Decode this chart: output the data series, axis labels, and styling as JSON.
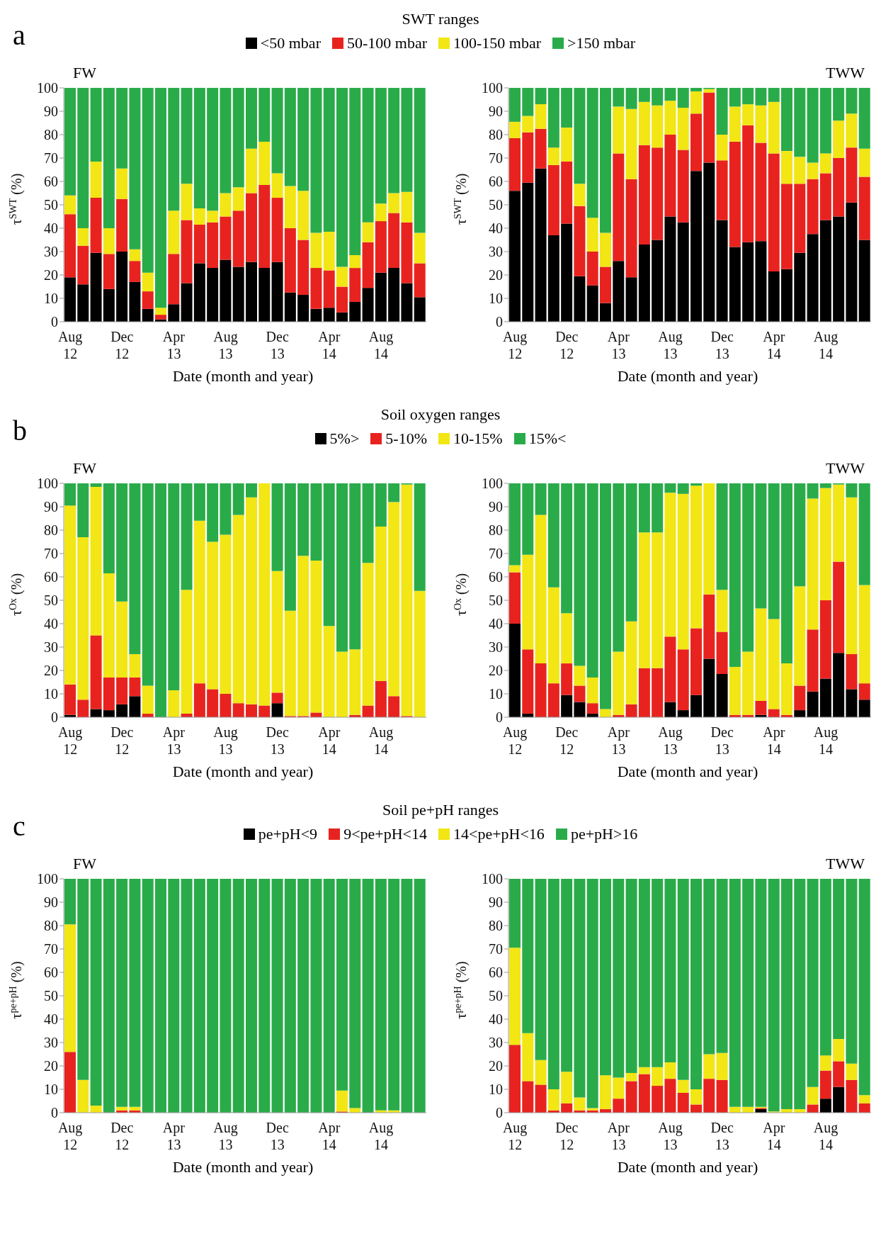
{
  "chart_data": [
    {
      "type": "bar",
      "stacked": true,
      "title": "SWT ranges",
      "annotations": [
        "a"
      ],
      "subtitle": "FW",
      "xlabel": "Date (month and year)",
      "ylabel": "τ$^{SWT}$ (%)",
      "legend": "top",
      "categories": [
        "Aug 12",
        null,
        null,
        null,
        "Dec 12",
        null,
        null,
        null,
        "Apr 13",
        null,
        null,
        null,
        "Aug 13",
        null,
        null,
        null,
        "Dec 13",
        null,
        null,
        null,
        "Apr 14",
        null,
        null,
        null,
        "Aug 14",
        null,
        null,
        null
      ],
      "ylim": [
        0,
        100
      ],
      "yticks": [
        0,
        10,
        20,
        30,
        40,
        50,
        60,
        70,
        80,
        90,
        100
      ],
      "series": [
        {
          "name": "<50 mbar",
          "color": "#000000",
          "values": [
            19,
            16,
            29.5,
            14,
            30,
            17,
            5.5,
            1,
            7.5,
            16.5,
            25,
            23,
            26.5,
            23.5,
            25.5,
            23,
            25.5,
            12.5,
            11.5,
            5.5,
            6,
            4,
            8.5,
            14.5,
            21,
            23,
            16.5,
            10.5
          ]
        },
        {
          "name": "50-100 mbar",
          "color": "#e8231f",
          "values": [
            27,
            16.5,
            23.5,
            15,
            22.5,
            9,
            7.5,
            2,
            21.5,
            27,
            16.5,
            19.5,
            18.5,
            24,
            29.5,
            35.5,
            27.5,
            27.5,
            23.5,
            17.5,
            16,
            11,
            14.5,
            19.5,
            22,
            23.5,
            26,
            14.5
          ]
        },
        {
          "name": "100-150 mbar",
          "color": "#f2e614",
          "values": [
            8,
            7.5,
            15.5,
            11,
            13,
            5,
            8,
            3,
            18.5,
            15.5,
            7,
            5,
            10,
            10,
            19,
            18.5,
            10.5,
            18,
            21,
            15,
            16.5,
            8.5,
            5.5,
            8.5,
            7.5,
            8.5,
            13,
            13
          ]
        },
        {
          "name": ">150 mbar",
          "color": "#2aab4a",
          "values": [
            46,
            60,
            31.5,
            60,
            34.5,
            69,
            79,
            94,
            52.5,
            41,
            51.5,
            52.5,
            45,
            42.5,
            26,
            23,
            36.5,
            42,
            44,
            62,
            61.5,
            76.5,
            71.5,
            57.5,
            49.5,
            45,
            44.5,
            62
          ]
        }
      ]
    },
    {
      "type": "bar",
      "stacked": true,
      "subtitle": "TWW",
      "xlabel": "Date (month and year)",
      "ylabel": "τ$^{SWT}$ (%)",
      "categories": [
        "Aug 12",
        null,
        null,
        null,
        "Dec 12",
        null,
        null,
        null,
        "Apr 13",
        null,
        null,
        null,
        "Aug 13",
        null,
        null,
        null,
        "Dec 13",
        null,
        null,
        null,
        "Apr 14",
        null,
        null,
        null,
        "Aug 14",
        null,
        null,
        null
      ],
      "ylim": [
        0,
        100
      ],
      "yticks": [
        0,
        10,
        20,
        30,
        40,
        50,
        60,
        70,
        80,
        90,
        100
      ],
      "series": [
        {
          "color": "#000000",
          "values": [
            56,
            59.5,
            65.5,
            37,
            42,
            19.5,
            15.5,
            8,
            26,
            19,
            33,
            35,
            45,
            42.5,
            64.5,
            68,
            43.5,
            32,
            34,
            34.5,
            21.5,
            22.5,
            29.5,
            37.5,
            43.5,
            45,
            51,
            35
          ]
        },
        {
          "color": "#e8231f",
          "values": [
            22.5,
            21.5,
            17,
            30,
            26.5,
            30,
            14.5,
            15.5,
            46,
            42,
            42.5,
            39.5,
            35,
            31,
            24.5,
            30,
            25.5,
            45,
            50,
            42,
            50.5,
            36.5,
            29.5,
            23.5,
            20,
            25,
            23.5,
            27
          ]
        },
        {
          "color": "#f2e614",
          "values": [
            7,
            7,
            10.5,
            7.5,
            14.5,
            9.5,
            14.5,
            14.5,
            20,
            30,
            18.5,
            18,
            14.5,
            18,
            9.5,
            1.5,
            11,
            15,
            9,
            16,
            22,
            14,
            11.5,
            7,
            8.5,
            16,
            14.5,
            12
          ]
        },
        {
          "color": "#2aab4a",
          "values": [
            14.5,
            12,
            7,
            25.5,
            17,
            41,
            55.5,
            62,
            8,
            9,
            6,
            7.5,
            5.5,
            8.5,
            1.5,
            0.5,
            20,
            8,
            7,
            7.5,
            6,
            27,
            29.5,
            32,
            28,
            14,
            11,
            26
          ]
        }
      ]
    },
    {
      "type": "bar",
      "stacked": true,
      "title": "Soil oxygen ranges",
      "annotations": [
        "b"
      ],
      "subtitle": "FW",
      "xlabel": "Date (month and year)",
      "ylabel": "τ$^{Ox}$ (%)",
      "legend": "top",
      "categories": [
        "Aug 12",
        null,
        null,
        null,
        "Dec 12",
        null,
        null,
        null,
        "Apr 13",
        null,
        null,
        null,
        "Aug 13",
        null,
        null,
        null,
        "Dec 13",
        null,
        null,
        null,
        "Apr 14",
        null,
        null,
        null,
        "Aug 14",
        null,
        null,
        null
      ],
      "ylim": [
        0,
        100
      ],
      "yticks": [
        0,
        10,
        20,
        30,
        40,
        50,
        60,
        70,
        80,
        90,
        100
      ],
      "series": [
        {
          "name": "5%>",
          "color": "#000000",
          "values": [
            1,
            0,
            3.5,
            3,
            5.5,
            9,
            0,
            0,
            0,
            0,
            0,
            0,
            0,
            0,
            0,
            0,
            6,
            0,
            0,
            0,
            0,
            0,
            0,
            0,
            0,
            0,
            0,
            0
          ]
        },
        {
          "name": "5-10%",
          "color": "#e8231f",
          "values": [
            13,
            7.5,
            31.5,
            14,
            11.5,
            8,
            1.5,
            0,
            0,
            1.5,
            14.5,
            12,
            10,
            6,
            5.5,
            5,
            4.5,
            0.5,
            0.5,
            2,
            0,
            0,
            1,
            5,
            15.5,
            9,
            0.5,
            0
          ]
        },
        {
          "name": "10-15%",
          "color": "#f2e614",
          "values": [
            76.5,
            69.5,
            63.5,
            44.5,
            32.5,
            10,
            12,
            0,
            11.5,
            53,
            69.5,
            63,
            68,
            80.5,
            88.5,
            95,
            52,
            45,
            68.5,
            65,
            39,
            28,
            28,
            61,
            66,
            83,
            99,
            54
          ]
        },
        {
          "name": "15%<",
          "color": "#2aab4a",
          "values": [
            9.5,
            23,
            1.5,
            38.5,
            50.5,
            73,
            86.5,
            100,
            88.5,
            45.5,
            16,
            25,
            22,
            13.5,
            6,
            0,
            37.5,
            54.5,
            31,
            33,
            61,
            72,
            71,
            34,
            18.5,
            8,
            0.5,
            46
          ]
        }
      ]
    },
    {
      "type": "bar",
      "stacked": true,
      "subtitle": "TWW",
      "xlabel": "Date (month and year)",
      "ylabel": "τ$^{Ox}$ (%)",
      "categories": [
        "Aug 12",
        null,
        null,
        null,
        "Dec 12",
        null,
        null,
        null,
        "Apr 13",
        null,
        null,
        null,
        "Aug 13",
        null,
        null,
        null,
        "Dec 13",
        null,
        null,
        null,
        "Apr 14",
        null,
        null,
        null,
        "Aug 14",
        null,
        null,
        null
      ],
      "ylim": [
        0,
        100
      ],
      "yticks": [
        0,
        10,
        20,
        30,
        40,
        50,
        60,
        70,
        80,
        90,
        100
      ],
      "series": [
        {
          "color": "#000000",
          "values": [
            40,
            1.5,
            0,
            0,
            9.5,
            6.5,
            1.5,
            0,
            0,
            0,
            0,
            0,
            6.5,
            3,
            9.5,
            25,
            18.5,
            0,
            0,
            1,
            0,
            0,
            3,
            11,
            16.5,
            27.5,
            12,
            7.5
          ]
        },
        {
          "color": "#e8231f",
          "values": [
            22,
            27.5,
            23,
            14.5,
            13.5,
            7,
            4.5,
            0,
            1,
            5.5,
            21,
            21,
            28,
            26,
            28.5,
            27.5,
            18,
            1,
            1,
            6,
            3.5,
            1,
            10.5,
            26.5,
            33.5,
            39,
            15,
            7
          ]
        },
        {
          "color": "#f2e614",
          "values": [
            3,
            40.5,
            63.5,
            41,
            21.5,
            8.5,
            11,
            3.5,
            27,
            35.5,
            58,
            58,
            61.5,
            66.5,
            61,
            47.5,
            18,
            20.5,
            27,
            39.5,
            38.5,
            22,
            42.5,
            56,
            48,
            33,
            67,
            42
          ]
        },
        {
          "color": "#2aab4a",
          "values": [
            35,
            30.5,
            13.5,
            44.5,
            55.5,
            78,
            83,
            96.5,
            72,
            59,
            21,
            21,
            4,
            4.5,
            1,
            0,
            45.5,
            78.5,
            72,
            53.5,
            58,
            77,
            44,
            6.5,
            2,
            0.5,
            6,
            43.5
          ]
        }
      ]
    },
    {
      "type": "bar",
      "stacked": true,
      "title": "Soil pe+pH ranges",
      "annotations": [
        "c"
      ],
      "subtitle": "FW",
      "xlabel": "Date (month and year)",
      "ylabel": "τ$^{pe+pH}$ (%)",
      "legend": "top",
      "categories": [
        "Aug 12",
        null,
        null,
        null,
        "Dec 12",
        null,
        null,
        null,
        "Apr 13",
        null,
        null,
        null,
        "Aug 13",
        null,
        null,
        null,
        "Dec 13",
        null,
        null,
        null,
        "Apr 14",
        null,
        null,
        null,
        "Aug 14",
        null,
        null,
        null
      ],
      "ylim": [
        0,
        100
      ],
      "yticks": [
        0,
        10,
        20,
        30,
        40,
        50,
        60,
        70,
        80,
        90,
        100
      ],
      "series": [
        {
          "name": "pe+pH<9",
          "color": "#000000",
          "values": [
            0,
            0,
            0,
            0,
            0,
            0,
            0,
            0,
            0,
            0,
            0,
            0,
            0,
            0,
            0,
            0,
            0,
            0,
            0,
            0,
            0,
            0,
            0,
            0,
            0,
            0,
            0,
            0
          ]
        },
        {
          "name": "9<pe+pH<14",
          "color": "#e8231f",
          "values": [
            26,
            0,
            0,
            0,
            1,
            1,
            0,
            0,
            0,
            0,
            0,
            0,
            0,
            0,
            0,
            0,
            0,
            0,
            0,
            0,
            0,
            0.5,
            0,
            0,
            0,
            0,
            0,
            0
          ]
        },
        {
          "name": "14<pe+pH<16",
          "color": "#f2e614",
          "values": [
            54.5,
            14,
            3,
            0,
            1.5,
            1.5,
            0,
            0,
            0,
            0,
            0,
            0,
            0,
            0,
            0,
            0,
            0,
            0,
            0,
            0,
            0,
            9,
            2,
            0,
            1,
            1,
            0,
            0
          ]
        },
        {
          "name": "pe+pH>16",
          "color": "#2aab4a",
          "values": [
            19.5,
            86,
            97,
            100,
            97.5,
            97.5,
            100,
            100,
            100,
            100,
            100,
            100,
            100,
            100,
            100,
            100,
            100,
            100,
            100,
            100,
            100,
            90.5,
            98,
            100,
            99,
            99,
            100,
            100
          ]
        }
      ]
    },
    {
      "type": "bar",
      "stacked": true,
      "subtitle": "TWW",
      "xlabel": "Date (month and year)",
      "ylabel": "τ$^{pe+pH}$ (%)",
      "categories": [
        "Aug 12",
        null,
        null,
        null,
        "Dec 12",
        null,
        null,
        null,
        "Apr 13",
        null,
        null,
        null,
        "Aug 13",
        null,
        null,
        null,
        "Dec 13",
        null,
        null,
        null,
        "Apr 14",
        null,
        null,
        null,
        "Aug 14",
        null,
        null,
        null
      ],
      "ylim": [
        0,
        100
      ],
      "yticks": [
        0,
        10,
        20,
        30,
        40,
        50,
        60,
        70,
        80,
        90,
        100
      ],
      "series": [
        {
          "color": "#000000",
          "values": [
            0,
            0,
            0,
            0,
            0,
            0,
            0,
            0,
            0,
            0,
            0,
            0,
            0,
            0,
            0,
            0,
            0,
            0,
            0,
            1.5,
            0,
            0,
            0,
            0,
            6,
            11,
            0,
            0
          ]
        },
        {
          "color": "#e8231f",
          "values": [
            29,
            13.5,
            12,
            1,
            4,
            1,
            1,
            1.5,
            6,
            13.5,
            16.5,
            11.5,
            14.5,
            8.5,
            3.5,
            14.5,
            14,
            0,
            0,
            0.5,
            0,
            0,
            0,
            3.5,
            12,
            11,
            14,
            4
          ]
        },
        {
          "color": "#f2e614",
          "values": [
            41.5,
            20.5,
            10.5,
            9,
            13.5,
            5.5,
            1,
            14.5,
            9,
            3.5,
            3,
            8,
            7,
            5.5,
            6.5,
            10.5,
            11.5,
            2.5,
            2.5,
            0.5,
            0.5,
            1.5,
            1.5,
            7.5,
            6.5,
            9.5,
            7,
            3.5
          ]
        },
        {
          "color": "#2aab4a",
          "values": [
            29.5,
            66,
            77.5,
            90,
            82.5,
            93.5,
            98,
            84,
            85,
            83,
            80.5,
            80.5,
            78.5,
            86,
            90,
            75,
            74.5,
            97.5,
            97.5,
            97.5,
            99.5,
            98.5,
            98.5,
            89,
            75.5,
            68.5,
            79,
            92.5
          ]
        }
      ]
    }
  ]
}
